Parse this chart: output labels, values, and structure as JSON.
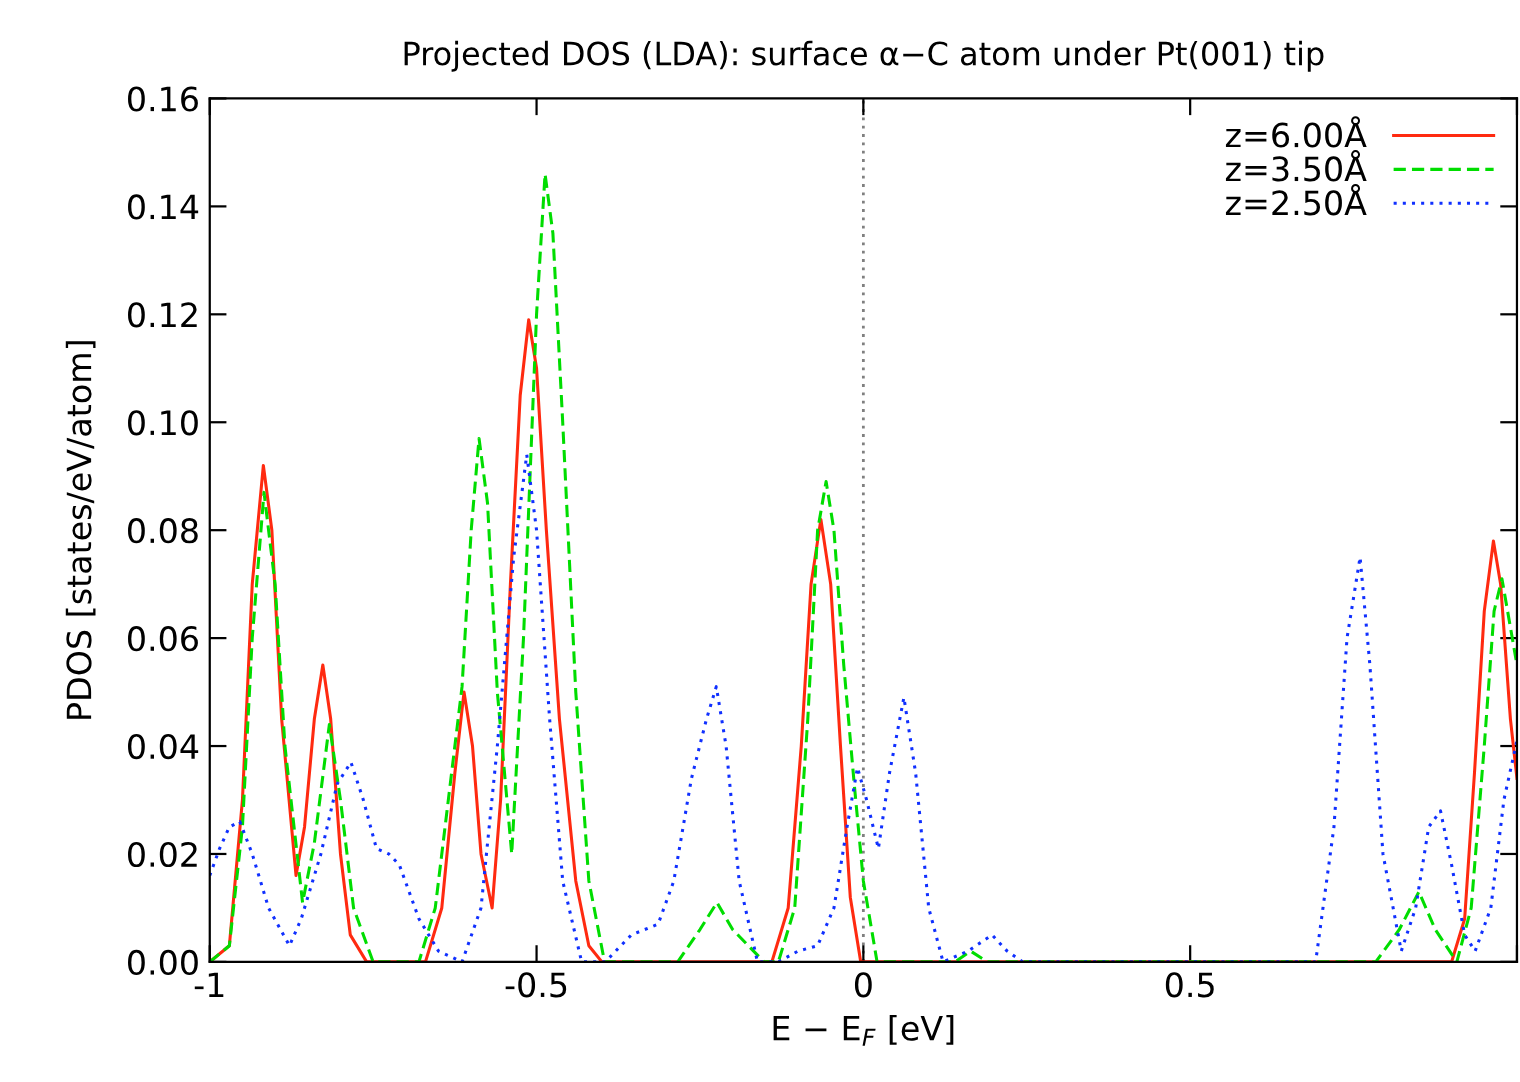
{
  "chart_data": {
    "type": "line",
    "title": "Projected DOS (LDA): surface α−C atom under Pt(001) tip",
    "xlabel": "E − E$_{F}$ [eV]",
    "ylabel": "PDOS [states/eV/atom]",
    "xlim": [
      -1,
      1
    ],
    "ylim": [
      0,
      0.16
    ],
    "xticks": [
      -1,
      -0.5,
      0,
      0.5,
      {
        "value": 1,
        "label": null
      }
    ],
    "yticks": [
      {
        "value": 0,
        "label": "0.00"
      },
      {
        "value": 0.02,
        "label": "0.02"
      },
      {
        "value": 0.04,
        "label": "0.04"
      },
      {
        "value": 0.06,
        "label": "0.06"
      },
      {
        "value": 0.08,
        "label": "0.08"
      },
      {
        "value": 0.1,
        "label": "0.10"
      },
      {
        "value": 0.12,
        "label": "0.12"
      },
      {
        "value": 0.14,
        "label": "0.14"
      },
      {
        "value": 0.16,
        "label": "0.16"
      }
    ],
    "grid": false,
    "legend": "top right",
    "ref_lines": [
      {
        "axis": "x",
        "value": 0,
        "color": "#808080",
        "line_style": "dotted"
      }
    ],
    "series": [
      {
        "name": "z=6.00Å",
        "color": "#ff2a10",
        "line_style": "solid",
        "x": [
          -1.0,
          -0.97,
          -0.95,
          -0.935,
          -0.918,
          -0.905,
          -0.89,
          -0.868,
          -0.855,
          -0.84,
          -0.827,
          -0.815,
          -0.8,
          -0.785,
          -0.76,
          -0.67,
          -0.645,
          -0.625,
          -0.611,
          -0.598,
          -0.585,
          -0.568,
          -0.555,
          -0.54,
          -0.525,
          -0.512,
          -0.5,
          -0.485,
          -0.465,
          -0.44,
          -0.42,
          -0.4,
          -0.14,
          -0.115,
          -0.095,
          -0.08,
          -0.065,
          -0.05,
          -0.035,
          -0.02,
          -0.004,
          0.9,
          0.92,
          0.935,
          0.95,
          0.964,
          0.975,
          0.99,
          1.0
        ],
        "values": [
          0,
          0.003,
          0.03,
          0.07,
          0.092,
          0.08,
          0.045,
          0.016,
          0.025,
          0.045,
          0.055,
          0.045,
          0.02,
          0.005,
          0,
          0,
          0.01,
          0.035,
          0.05,
          0.04,
          0.02,
          0.01,
          0.03,
          0.07,
          0.105,
          0.119,
          0.11,
          0.08,
          0.045,
          0.015,
          0.003,
          0,
          0,
          0.01,
          0.04,
          0.07,
          0.082,
          0.07,
          0.04,
          0.012,
          0,
          0,
          0.008,
          0.035,
          0.065,
          0.078,
          0.07,
          0.045,
          0.034
        ]
      },
      {
        "name": "z=3.50Å",
        "color": "#00dd00",
        "line_style": "dashed",
        "x": [
          -1,
          -0.97,
          -0.95,
          -0.935,
          -0.917,
          -0.9,
          -0.885,
          -0.858,
          -0.84,
          -0.817,
          -0.8,
          -0.78,
          -0.75,
          -0.68,
          -0.655,
          -0.63,
          -0.614,
          -0.6,
          -0.588,
          -0.575,
          -0.56,
          -0.538,
          -0.52,
          -0.5,
          -0.487,
          -0.475,
          -0.46,
          -0.44,
          -0.42,
          -0.396,
          -0.284,
          -0.25,
          -0.224,
          -0.2,
          -0.152,
          -0.13,
          -0.105,
          -0.085,
          -0.07,
          -0.057,
          -0.045,
          -0.03,
          -0.014,
          0,
          0.021,
          0.14,
          0.164,
          0.19,
          0.784,
          0.82,
          0.85,
          0.875,
          0.908,
          0.93,
          0.95,
          0.965,
          0.977,
          0.99,
          1.0
        ],
        "values": [
          0,
          0.003,
          0.025,
          0.06,
          0.087,
          0.07,
          0.04,
          0.011,
          0.022,
          0.044,
          0.03,
          0.01,
          0,
          0,
          0.01,
          0.035,
          0.051,
          0.08,
          0.097,
          0.085,
          0.05,
          0.02,
          0.06,
          0.12,
          0.146,
          0.135,
          0.1,
          0.05,
          0.015,
          0,
          0,
          0.006,
          0.011,
          0.006,
          0,
          0,
          0.01,
          0.045,
          0.08,
          0.089,
          0.08,
          0.055,
          0.033,
          0.015,
          0,
          0,
          0.002,
          0,
          0,
          0.006,
          0.013,
          0.006,
          0,
          0.01,
          0.04,
          0.065,
          0.071,
          0.062,
          0.055
        ]
      },
      {
        "name": "z=2.50Å",
        "color": "#1030ff",
        "line_style": "dotted",
        "x": [
          -1,
          -0.985,
          -0.97,
          -0.954,
          -0.935,
          -0.91,
          -0.878,
          -0.86,
          -0.83,
          -0.805,
          -0.784,
          -0.765,
          -0.745,
          -0.726,
          -0.71,
          -0.68,
          -0.65,
          -0.614,
          -0.585,
          -0.56,
          -0.535,
          -0.515,
          -0.5,
          -0.48,
          -0.46,
          -0.431,
          -0.395,
          -0.355,
          -0.314,
          -0.29,
          -0.263,
          -0.24,
          -0.225,
          -0.21,
          -0.19,
          -0.162,
          -0.13,
          -0.1,
          -0.07,
          -0.045,
          -0.025,
          -0.009,
          0.005,
          0.023,
          0.04,
          0.062,
          0.08,
          0.1,
          0.122,
          0.16,
          0.197,
          0.22,
          0.244,
          0.692,
          0.72,
          0.74,
          0.76,
          0.775,
          0.795,
          0.823,
          0.845,
          0.865,
          0.883,
          0.9,
          0.92,
          0.936,
          0.96,
          0.98,
          1.0
        ],
        "values": [
          0.016,
          0.021,
          0.025,
          0.026,
          0.02,
          0.01,
          0.003,
          0.008,
          0.02,
          0.033,
          0.037,
          0.03,
          0.021,
          0.02,
          0.018,
          0.008,
          0.002,
          0,
          0.01,
          0.04,
          0.075,
          0.094,
          0.08,
          0.045,
          0.015,
          0,
          0,
          0.005,
          0.007,
          0.015,
          0.034,
          0.045,
          0.051,
          0.04,
          0.015,
          0,
          0,
          0.002,
          0.003,
          0.01,
          0.025,
          0.036,
          0.03,
          0.021,
          0.035,
          0.049,
          0.035,
          0.01,
          0,
          0.002,
          0.005,
          0.002,
          0,
          0,
          0.025,
          0.06,
          0.075,
          0.055,
          0.02,
          0.002,
          0.01,
          0.025,
          0.028,
          0.018,
          0.005,
          0.002,
          0.01,
          0.03,
          0.041
        ]
      }
    ]
  }
}
